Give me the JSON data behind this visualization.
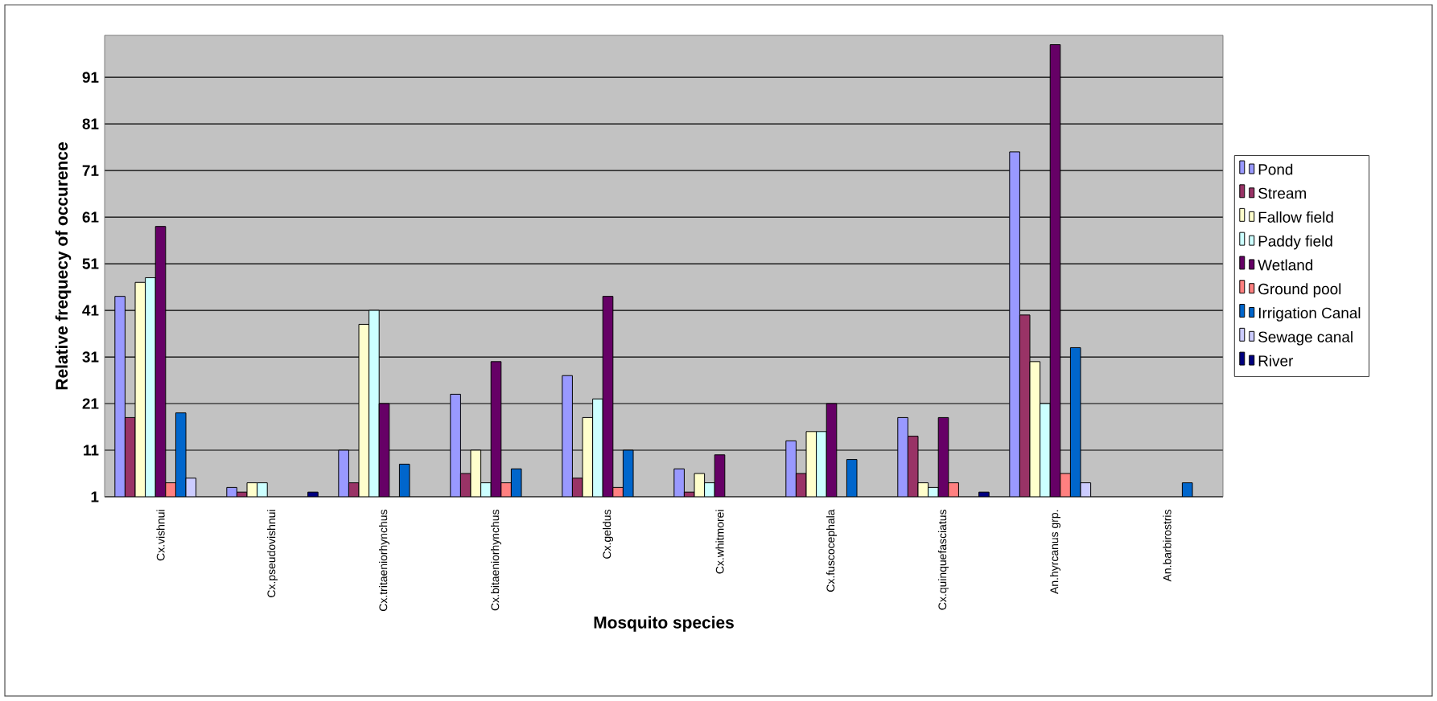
{
  "chart_data": {
    "type": "bar",
    "xlabel": "Mosquito species",
    "ylabel": "Relative frequecy of occurence",
    "categories": [
      "Cx.vishnui",
      "Cx.pseudovishnui",
      "Cx.tritaeniorhynchus",
      "Cx.bitaeniorhynchus",
      "Cx.geldus",
      "Cx.whitmorei",
      "Cx.fuscocephala",
      "Cx.quinquefasciatus",
      "An.hyrcanus grp.",
      "An.barbirostris"
    ],
    "series": [
      {
        "name": "Pond",
        "color": "#9999ff",
        "values": [
          44,
          3,
          11,
          23,
          27,
          7,
          13,
          18,
          75,
          null
        ]
      },
      {
        "name": "Stream",
        "color": "#993366",
        "values": [
          18,
          2,
          4,
          6,
          5,
          2,
          6,
          14,
          40,
          null
        ]
      },
      {
        "name": "Fallow field",
        "color": "#ffffcc",
        "values": [
          47,
          4,
          38,
          11,
          18,
          6,
          15,
          4,
          30,
          null
        ]
      },
      {
        "name": "Paddy field",
        "color": "#ccffff",
        "values": [
          48,
          4,
          41,
          4,
          22,
          4,
          15,
          3,
          21,
          null
        ]
      },
      {
        "name": "Wetland",
        "color": "#660066",
        "values": [
          59,
          null,
          21,
          30,
          44,
          10,
          21,
          18,
          98,
          null
        ]
      },
      {
        "name": "Ground pool",
        "color": "#ff8080",
        "values": [
          4,
          null,
          null,
          4,
          3,
          null,
          null,
          4,
          6,
          null
        ]
      },
      {
        "name": "Irrigation Canal",
        "color": "#0066cc",
        "values": [
          19,
          null,
          8,
          7,
          11,
          null,
          9,
          null,
          33,
          4
        ]
      },
      {
        "name": "Sewage canal",
        "color": "#ccccff",
        "values": [
          5,
          null,
          null,
          null,
          null,
          null,
          null,
          null,
          4,
          null
        ]
      },
      {
        "name": "River",
        "color": "#000080",
        "values": [
          null,
          2,
          null,
          null,
          null,
          null,
          null,
          2,
          null,
          null
        ]
      }
    ],
    "ylim": [
      1,
      100
    ],
    "yticks": [
      1,
      11,
      21,
      31,
      41,
      51,
      61,
      71,
      81,
      91
    ],
    "grid": "y",
    "legend": "right"
  }
}
